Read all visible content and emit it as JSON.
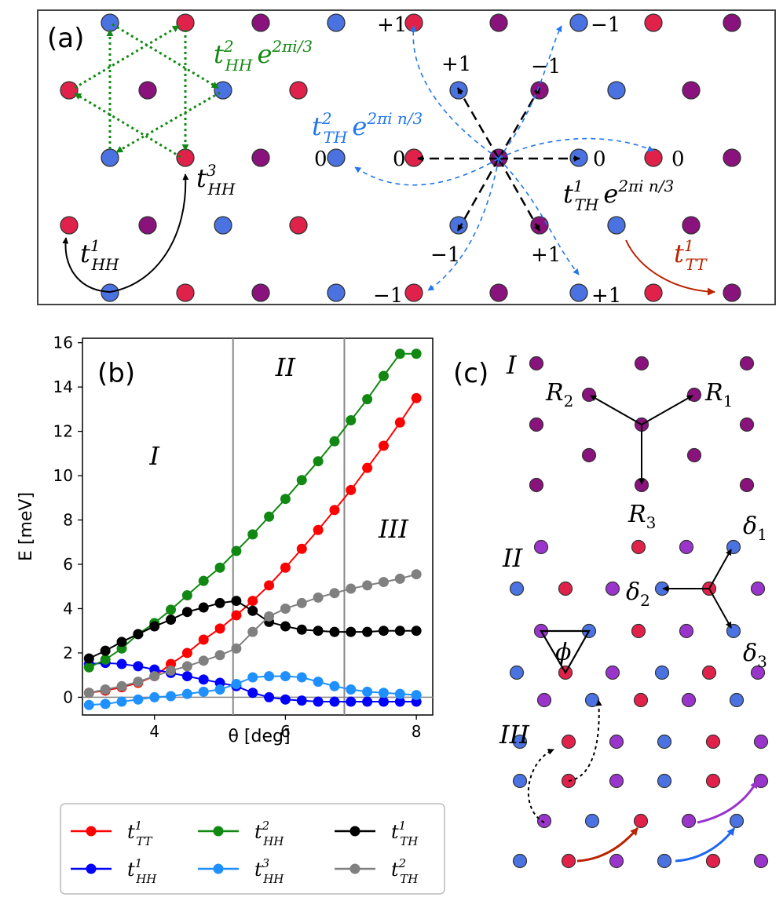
{
  "colors": {
    "red_site": "#e0224b",
    "blue_site": "#4a72e0",
    "purple_site": "#8a127c",
    "violet_site": "#9a35cc",
    "t_TT1": "#ff0000",
    "t_HH1": "#0000ff",
    "t_HH2": "#118811",
    "t_HH3": "#1e90ff",
    "t_TH1": "#000000",
    "t_TH2": "#808080",
    "hop_blue": "#2277ee",
    "hop_green": "#118811",
    "hop_red": "#bb2200",
    "hop_purple": "#9a35cc"
  },
  "panel_a": {
    "label": "(a)",
    "hops": {
      "tHH2": {
        "sym": "t",
        "sup": "2",
        "sub": "HH",
        "phase": "2πi/3"
      },
      "tHH3": {
        "sym": "t",
        "sup": "3",
        "sub": "HH"
      },
      "tHH1": {
        "sym": "t",
        "sup": "1",
        "sub": "HH"
      },
      "tTH2": {
        "sym": "t",
        "sup": "2",
        "sub": "TH",
        "phase": "2πi n/3"
      },
      "tTH1": {
        "sym": "t",
        "sup": "1",
        "sub": "TH",
        "phase": "2πi n/3"
      },
      "tTT1": {
        "sym": "t",
        "sup": "1",
        "sub": "TT"
      }
    },
    "e_char": "e",
    "phase_labels": {
      "p1": "+1",
      "p2": "−1",
      "p3": "+1",
      "p4": "−1",
      "p5": "0",
      "p6": "0",
      "p7": "0",
      "p8": "0",
      "p9": "−1",
      "p10": "+1",
      "p11": "−1",
      "p12": "+1"
    }
  },
  "chart_data": {
    "type": "line",
    "title": "(b)",
    "xlabel": "θ [deg]",
    "ylabel": "E [meV]",
    "xlim": [
      2.9,
      8.25
    ],
    "ylim": [
      -0.8,
      16.2
    ],
    "xticks": [
      4,
      6,
      8
    ],
    "yticks": [
      0,
      2,
      4,
      6,
      8,
      10,
      12,
      14,
      16
    ],
    "region_boundaries": [
      5.2,
      6.9
    ],
    "region_labels": [
      {
        "text": "I",
        "x": 4.0,
        "y": 10.5
      },
      {
        "text": "II",
        "x": 6.0,
        "y": 14.5
      },
      {
        "text": "III",
        "x": 7.65,
        "y": 7.2
      }
    ],
    "x": [
      3.0,
      3.25,
      3.5,
      3.75,
      4.0,
      4.25,
      4.5,
      4.75,
      5.0,
      5.25,
      5.5,
      5.75,
      6.0,
      6.25,
      6.5,
      6.75,
      7.0,
      7.25,
      7.5,
      7.75,
      8.0
    ],
    "series": [
      {
        "name": "t_TT^1",
        "sub": "TT",
        "sup": "1",
        "color": "#ff0000",
        "values": [
          0.2,
          0.3,
          0.45,
          0.65,
          0.95,
          1.5,
          2.0,
          2.6,
          3.1,
          3.7,
          4.35,
          5.05,
          5.85,
          6.7,
          7.55,
          8.45,
          9.35,
          10.35,
          11.35,
          12.4,
          13.5
        ]
      },
      {
        "name": "t_HH^1",
        "sub": "HH",
        "sup": "1",
        "color": "#0000ff",
        "values": [
          1.5,
          1.55,
          1.5,
          1.4,
          1.25,
          1.1,
          0.95,
          0.8,
          0.65,
          0.5,
          0.2,
          0.0,
          -0.1,
          -0.15,
          -0.2,
          -0.2,
          -0.2,
          -0.2,
          -0.2,
          -0.2,
          -0.2
        ]
      },
      {
        "name": "t_HH^2",
        "sub": "HH",
        "sup": "2",
        "color": "#118811",
        "values": [
          1.35,
          1.7,
          2.2,
          2.85,
          3.35,
          3.95,
          4.6,
          5.25,
          5.85,
          6.6,
          7.35,
          8.15,
          8.95,
          9.8,
          10.65,
          11.55,
          12.5,
          13.45,
          14.5,
          15.5,
          15.5
        ]
      },
      {
        "name": "t_HH^3",
        "sub": "HH",
        "sup": "3",
        "color": "#1e90ff",
        "values": [
          -0.35,
          -0.3,
          -0.2,
          -0.1,
          0.0,
          0.05,
          0.15,
          0.25,
          0.35,
          0.6,
          0.9,
          0.95,
          0.95,
          0.9,
          0.7,
          0.5,
          0.35,
          0.25,
          0.2,
          0.15,
          0.1
        ]
      },
      {
        "name": "t_TH^1",
        "sub": "TH",
        "sup": "1",
        "color": "#000000",
        "values": [
          1.75,
          2.1,
          2.5,
          2.85,
          3.2,
          3.5,
          3.85,
          4.05,
          4.25,
          4.35,
          3.9,
          3.4,
          3.2,
          3.05,
          3.0,
          2.95,
          2.95,
          2.95,
          3.0,
          3.0,
          3.0
        ]
      },
      {
        "name": "t_TH^2",
        "sub": "TH",
        "sup": "2",
        "color": "#808080",
        "values": [
          0.2,
          0.35,
          0.5,
          0.7,
          0.95,
          1.2,
          1.4,
          1.65,
          1.9,
          2.2,
          2.95,
          3.65,
          4.0,
          4.25,
          4.5,
          4.7,
          4.9,
          5.05,
          5.2,
          5.35,
          5.55
        ]
      }
    ]
  },
  "legend": {
    "items": [
      {
        "sym": "t",
        "sup": "1",
        "sub": "TT",
        "color": "#ff0000"
      },
      {
        "sym": "t",
        "sup": "2",
        "sub": "HH",
        "color": "#118811"
      },
      {
        "sym": "t",
        "sup": "1",
        "sub": "TH",
        "color": "#000000"
      },
      {
        "sym": "t",
        "sup": "1",
        "sub": "HH",
        "color": "#0000ff"
      },
      {
        "sym": "t",
        "sup": "3",
        "sub": "HH",
        "color": "#1e90ff"
      },
      {
        "sym": "t",
        "sup": "2",
        "sub": "TH",
        "color": "#808080"
      }
    ]
  },
  "panel_c": {
    "label": "(c)",
    "regions": {
      "I": "I",
      "II": "II",
      "III": "III"
    },
    "vectors": {
      "R1": {
        "base": "R",
        "sub": "1"
      },
      "R2": {
        "base": "R",
        "sub": "2"
      },
      "R3": {
        "base": "R",
        "sub": "3"
      },
      "d1": {
        "base": "δ",
        "sub": "1"
      },
      "d2": {
        "base": "δ",
        "sub": "2"
      },
      "d3": {
        "base": "δ",
        "sub": "3"
      }
    },
    "phi": "ϕ"
  }
}
